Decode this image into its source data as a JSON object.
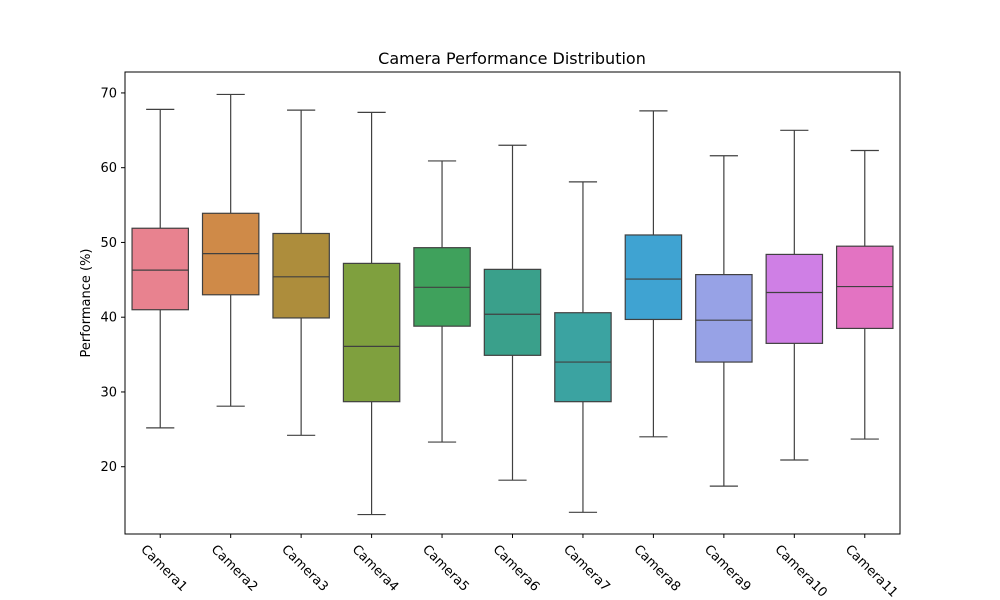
{
  "chart_data": {
    "type": "boxplot",
    "title": "Camera Performance Distribution",
    "xlabel": "",
    "ylabel": "Performance (%)",
    "ylim": [
      11,
      72.8
    ],
    "yticks": [
      20,
      30,
      40,
      50,
      60,
      70
    ],
    "grid": false,
    "categories": [
      "Camera1",
      "Camera2",
      "Camera3",
      "Camera4",
      "Camera5",
      "Camera6",
      "Camera7",
      "Camera8",
      "Camera9",
      "Camera10",
      "Camera11"
    ],
    "series": [
      {
        "min": 25.2,
        "q1": 41.0,
        "median": 46.3,
        "q3": 51.9,
        "max": 67.8,
        "color": "#e8828f"
      },
      {
        "min": 28.1,
        "q1": 43.0,
        "median": 48.5,
        "q3": 53.9,
        "max": 69.8,
        "color": "#cf8a48"
      },
      {
        "min": 24.2,
        "q1": 39.9,
        "median": 45.4,
        "q3": 51.2,
        "max": 67.7,
        "color": "#ad8d3c"
      },
      {
        "min": 13.6,
        "q1": 28.7,
        "median": 36.1,
        "q3": 47.2,
        "max": 67.4,
        "color": "#7fa03e"
      },
      {
        "min": 23.3,
        "q1": 38.8,
        "median": 44.0,
        "q3": 49.3,
        "max": 60.9,
        "color": "#3fa15c"
      },
      {
        "min": 18.2,
        "q1": 34.9,
        "median": 40.4,
        "q3": 46.4,
        "max": 63.0,
        "color": "#3aa08b"
      },
      {
        "min": 13.9,
        "q1": 28.7,
        "median": 34.0,
        "q3": 40.6,
        "max": 58.1,
        "color": "#3ba3a1"
      },
      {
        "min": 24.0,
        "q1": 39.7,
        "median": 45.1,
        "q3": 51.0,
        "max": 67.6,
        "color": "#3fa3d2"
      },
      {
        "min": 17.4,
        "q1": 34.0,
        "median": 39.6,
        "q3": 45.7,
        "max": 61.6,
        "color": "#97a2e6"
      },
      {
        "min": 20.9,
        "q1": 36.5,
        "median": 43.3,
        "q3": 48.4,
        "max": 65.0,
        "color": "#cf7fe5"
      },
      {
        "min": 23.7,
        "q1": 38.5,
        "median": 44.1,
        "q3": 49.5,
        "max": 62.3,
        "color": "#e373c2"
      }
    ]
  }
}
